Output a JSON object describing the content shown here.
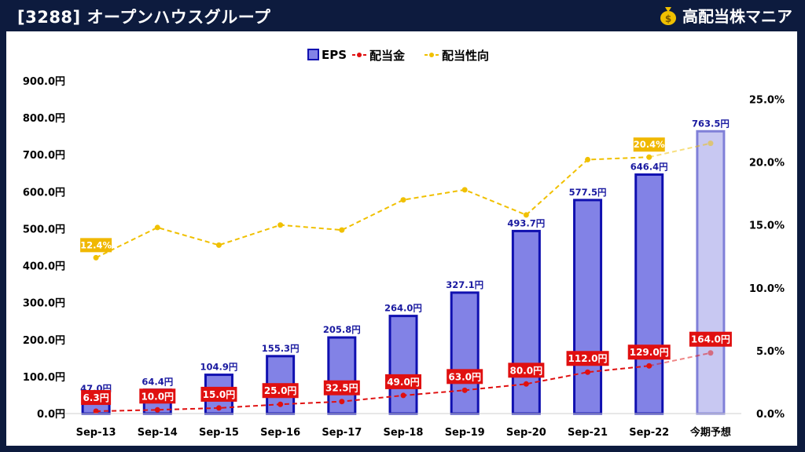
{
  "header": {
    "title": "[3288] オープンハウスグループ",
    "brand": "高配当株マニア",
    "brand_icon": "money-bag-icon"
  },
  "colors": {
    "background": "#0d1b3e",
    "bar_fill": "#8282e6",
    "bar_stroke": "#1010b0",
    "forecast_bar_fill": "#c8c8f2",
    "forecast_bar_stroke": "#8080d8",
    "dividend_line": "#e01010",
    "dividend_label_bg": "#e01010",
    "payout_line": "#f0c000",
    "payout_label_bg": "#f0b800",
    "eps_label": "#1a1aa0"
  },
  "chart_data": {
    "type": "bar",
    "categories": [
      "Sep-13",
      "Sep-14",
      "Sep-15",
      "Sep-16",
      "Sep-17",
      "Sep-18",
      "Sep-19",
      "Sep-20",
      "Sep-21",
      "Sep-22",
      "今期予想"
    ],
    "series": [
      {
        "name": "EPS",
        "type": "bar",
        "axis": "left",
        "values": [
          47.0,
          64.4,
          104.9,
          155.3,
          205.8,
          264.0,
          327.1,
          493.7,
          577.5,
          646.4,
          763.5
        ],
        "labels": [
          "47.0円",
          "64.4円",
          "104.9円",
          "155.3円",
          "205.8円",
          "264.0円",
          "327.1円",
          "493.7円",
          "577.5円",
          "646.4円",
          "763.5円"
        ]
      },
      {
        "name": "配当金",
        "type": "line",
        "axis": "left",
        "values": [
          6.3,
          10.0,
          15.0,
          25.0,
          32.5,
          49.0,
          63.0,
          80.0,
          112.0,
          129.0,
          164.0
        ],
        "labels": [
          "6.3円",
          "10.0円",
          "15.0円",
          "25.0円",
          "32.5円",
          "49.0円",
          "63.0円",
          "80.0円",
          "112.0円",
          "129.0円",
          "164.0円"
        ]
      },
      {
        "name": "配当性向",
        "type": "line",
        "axis": "right",
        "values": [
          12.4,
          14.8,
          13.4,
          15.0,
          14.6,
          17.0,
          17.8,
          15.8,
          20.2,
          20.4,
          21.5
        ],
        "labels": [
          "12.4%",
          "",
          "",
          "",
          "",
          "",
          "",
          "",
          "",
          "20.4%",
          ""
        ]
      }
    ],
    "y_left": {
      "min": 0,
      "max": 900,
      "ticks": [
        "0.0円",
        "100.0円",
        "200.0円",
        "300.0円",
        "400.0円",
        "500.0円",
        "600.0円",
        "700.0円",
        "800.0円",
        "900.0円"
      ]
    },
    "y_right": {
      "min": 0,
      "max": 26.47,
      "ticks": [
        "0.0%",
        "5.0%",
        "10.0%",
        "15.0%",
        "20.0%",
        "25.0%"
      ]
    },
    "legend": [
      "EPS",
      "配当金",
      "配当性向"
    ],
    "legend_position": "top-center",
    "grid": false
  }
}
